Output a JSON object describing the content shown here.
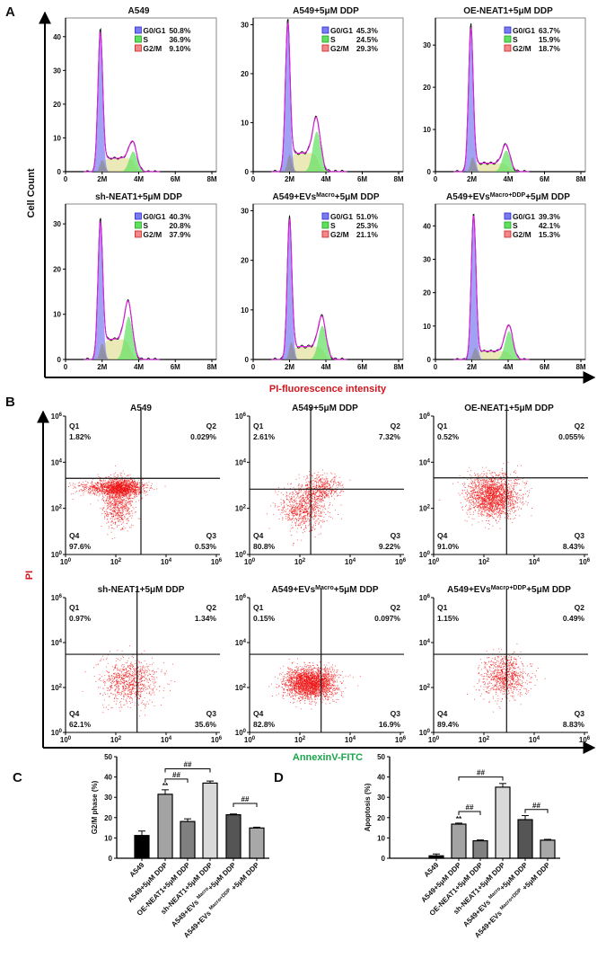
{
  "panel_labels": {
    "a": "A",
    "b": "B",
    "c": "C",
    "d": "D"
  },
  "panel_a": {
    "ylabel": "Cell Count",
    "xlabel": "PI-fluorescence intensity",
    "xlabel_color": "#d4151d",
    "x_ticks": [
      "0",
      "2M",
      "4M",
      "6M",
      "8M"
    ],
    "phase_colors": {
      "G0/G1": "#7b7bf0",
      "S": "#5fe05f",
      "G2/M": "#f08a8a"
    }
  },
  "chart_data": [
    {
      "type": "histogram",
      "title": {
        "pre": "A549",
        "sup": "",
        "post": ""
      },
      "ylim": [
        0,
        45
      ],
      "y_ticks": [
        0,
        10,
        20,
        30,
        40
      ],
      "xlim": [
        0,
        8
      ],
      "x_unit": "M",
      "phases": [
        {
          "name": "G0/G1",
          "value": "50.8%"
        },
        {
          "name": "S",
          "value": "36.9%"
        },
        {
          "name": "G2/M",
          "value": "9.10%"
        }
      ]
    },
    {
      "type": "histogram",
      "title": {
        "pre": "A549+5μM DDP",
        "sup": "",
        "post": ""
      },
      "ylim": [
        0,
        31
      ],
      "y_ticks": [
        0,
        10,
        20,
        30
      ],
      "xlim": [
        0,
        8
      ],
      "x_unit": "M",
      "phases": [
        {
          "name": "G0/G1",
          "value": "45.3%"
        },
        {
          "name": "S",
          "value": "24.5%"
        },
        {
          "name": "G2/M",
          "value": "29.3%"
        }
      ]
    },
    {
      "type": "histogram",
      "title": {
        "pre": "OE-NEAT1+5μM DDP",
        "sup": "",
        "post": ""
      },
      "ylim": [
        0,
        36
      ],
      "y_ticks": [
        0,
        10,
        20,
        30
      ],
      "xlim": [
        0,
        8
      ],
      "x_unit": "M",
      "phases": [
        {
          "name": "G0/G1",
          "value": "63.7%"
        },
        {
          "name": "S",
          "value": "15.9%"
        },
        {
          "name": "G2/M",
          "value": "18.7%"
        }
      ]
    },
    {
      "type": "histogram",
      "title": {
        "pre": "sh-NEAT1+5μM DDP",
        "sup": "",
        "post": ""
      },
      "ylim": [
        0,
        34
      ],
      "y_ticks": [
        0,
        10,
        20,
        30
      ],
      "xlim": [
        0,
        8
      ],
      "x_unit": "M",
      "phases": [
        {
          "name": "G0/G1",
          "value": "40.3%"
        },
        {
          "name": "S",
          "value": "20.8%"
        },
        {
          "name": "G2/M",
          "value": "37.9%"
        }
      ]
    },
    {
      "type": "histogram",
      "title": {
        "pre": "A549+EVs",
        "sup": "Macro",
        "post": "+5μM DDP"
      },
      "ylim": [
        0,
        31
      ],
      "y_ticks": [
        0,
        10,
        20,
        30
      ],
      "xlim": [
        0,
        8
      ],
      "x_unit": "M",
      "phases": [
        {
          "name": "G0/G1",
          "value": "51.0%"
        },
        {
          "name": "S",
          "value": "25.3%"
        },
        {
          "name": "G2/M",
          "value": "21.1%"
        }
      ]
    },
    {
      "type": "histogram",
      "title": {
        "pre": "A549+EVs",
        "sup": "Macro+DDP",
        "post": "+5μM DDP"
      },
      "ylim": [
        0,
        46
      ],
      "y_ticks": [
        0,
        10,
        20,
        30,
        40
      ],
      "xlim": [
        0,
        8
      ],
      "x_unit": "M",
      "phases": [
        {
          "name": "G0/G1",
          "value": "39.3%"
        },
        {
          "name": "S",
          "value": "42.1%"
        },
        {
          "name": "G2/M",
          "value": "15.3%"
        }
      ]
    },
    {
      "type": "scatter",
      "title": {
        "pre": "A549",
        "sup": "",
        "post": ""
      },
      "scale": "log",
      "lim": [
        1,
        1000000
      ],
      "gate": [
        1000,
        2000
      ],
      "quadrants": {
        "Q1": "1.82%",
        "Q2": "0.029%",
        "Q3": "0.53%",
        "Q4": "97.6%"
      }
    },
    {
      "type": "scatter",
      "title": {
        "pre": "A549+5μM DDP",
        "sup": "",
        "post": ""
      },
      "scale": "log",
      "lim": [
        1,
        1000000
      ],
      "gate": [
        270,
        680
      ],
      "quadrants": {
        "Q1": "2.61%",
        "Q2": "7.32%",
        "Q3": "9.22%",
        "Q4": "80.8%"
      }
    },
    {
      "type": "scatter",
      "title": {
        "pre": "OE-NEAT1+5μM DDP",
        "sup": "",
        "post": ""
      },
      "scale": "log",
      "lim": [
        1,
        1000000
      ],
      "gate": [
        800,
        2100
      ],
      "quadrants": {
        "Q1": "0.52%",
        "Q2": "0.055%",
        "Q3": "8.43%",
        "Q4": "91.0%"
      }
    },
    {
      "type": "scatter",
      "title": {
        "pre": "sh-NEAT1+5μM DDP",
        "sup": "",
        "post": ""
      },
      "scale": "log",
      "lim": [
        1,
        1000000
      ],
      "gate": [
        700,
        3000
      ],
      "quadrants": {
        "Q1": "0.97%",
        "Q2": "1.34%",
        "Q3": "35.6%",
        "Q4": "62.1%"
      }
    },
    {
      "type": "scatter",
      "title": {
        "pre": "A549+EVs",
        "sup": "Macro",
        "post": "+5μM DDP"
      },
      "scale": "log",
      "lim": [
        1,
        1000000
      ],
      "gate": [
        700,
        3000
      ],
      "quadrants": {
        "Q1": "0.15%",
        "Q2": "0.097%",
        "Q3": "16.9%",
        "Q4": "82.8%"
      }
    },
    {
      "type": "scatter",
      "title": {
        "pre": "A549+EVs",
        "sup": "Macro+DDP",
        "post": "+5μM DDP"
      },
      "scale": "log",
      "lim": [
        1,
        1000000
      ],
      "gate": [
        800,
        3000
      ],
      "quadrants": {
        "Q1": "1.15%",
        "Q2": "0.49%",
        "Q3": "8.83%",
        "Q4": "89.4%"
      }
    },
    {
      "type": "bar",
      "ylabel": "G2/M phase (%)",
      "ylim": [
        0,
        50
      ],
      "y_ticks": [
        "0",
        "10",
        "20",
        "30",
        "40",
        "50"
      ],
      "categories": [
        {
          "pre": "A549",
          "sup": "",
          "post": ""
        },
        {
          "pre": "A549+5μM DDP",
          "sup": "",
          "post": ""
        },
        {
          "pre": "OE-NEAT1+5μM DDP",
          "sup": "",
          "post": ""
        },
        {
          "pre": "sh-NEAT1+5μM DDP",
          "sup": "",
          "post": ""
        },
        {
          "pre": "A549+EVs ",
          "sup": "Macro",
          "post": "+5μM DDP"
        },
        {
          "pre": "A549+EVs ",
          "sup": "Macro+DDP",
          "post": " +5μM DDP"
        }
      ],
      "values": [
        11.2,
        31.5,
        18.1,
        37.0,
        21.4,
        14.9
      ],
      "errors": [
        2.2,
        2.2,
        1.3,
        1.0,
        0.4,
        0.4
      ],
      "colors": [
        "#000000",
        "#a3a3a3",
        "#808080",
        "#d9d9d9",
        "#555555",
        "#a8a8a8"
      ],
      "annotations": [
        {
          "text": "**",
          "bar": 1
        }
      ],
      "brackets": [
        {
          "from": 1,
          "to": 3,
          "text": "##",
          "level": 44
        },
        {
          "from": 1,
          "to": 2,
          "text": "##",
          "level": 39
        },
        {
          "from": 4,
          "to": 5,
          "text": "##",
          "level": 27
        }
      ]
    },
    {
      "type": "bar",
      "ylabel": "Apoptosis (%)",
      "ylim": [
        0,
        50
      ],
      "y_ticks": [
        "0",
        "10",
        "20",
        "30",
        "40",
        "50"
      ],
      "categories": [
        {
          "pre": "A549",
          "sup": "",
          "post": ""
        },
        {
          "pre": "A549+5μM DDP",
          "sup": "",
          "post": ""
        },
        {
          "pre": "OE-NEAT1+5μM DDP",
          "sup": "",
          "post": ""
        },
        {
          "pre": "sh-NEAT1+5μM DDP",
          "sup": "",
          "post": ""
        },
        {
          "pre": "A549+EVs ",
          "sup": "Macro",
          "post": "+5μM DDP"
        },
        {
          "pre": "A549+EVs ",
          "sup": "Macro+DDP",
          "post": " +5μM DDP"
        }
      ],
      "values": [
        1.2,
        16.8,
        8.6,
        35.0,
        19.0,
        8.9
      ],
      "errors": [
        0.9,
        0.5,
        0.4,
        1.8,
        2.0,
        0.4
      ],
      "colors": [
        "#000000",
        "#a3a3a3",
        "#808080",
        "#d9d9d9",
        "#555555",
        "#a8a8a8"
      ],
      "annotations": [
        {
          "text": "**",
          "bar": 1
        }
      ],
      "brackets": [
        {
          "from": 1,
          "to": 3,
          "text": "##",
          "level": 40
        },
        {
          "from": 1,
          "to": 2,
          "text": "##",
          "level": 23
        },
        {
          "from": 4,
          "to": 5,
          "text": "##",
          "level": 24
        }
      ]
    }
  ],
  "panel_b": {
    "ylabel": "PI",
    "ylabel_color": "#d4151d",
    "xlabel": "AnnexinV-FITC",
    "xlabel_color": "#1aa54a",
    "tick_exponents": [
      "0",
      "2",
      "4",
      "6"
    ],
    "dot_color": "#ee1111"
  }
}
